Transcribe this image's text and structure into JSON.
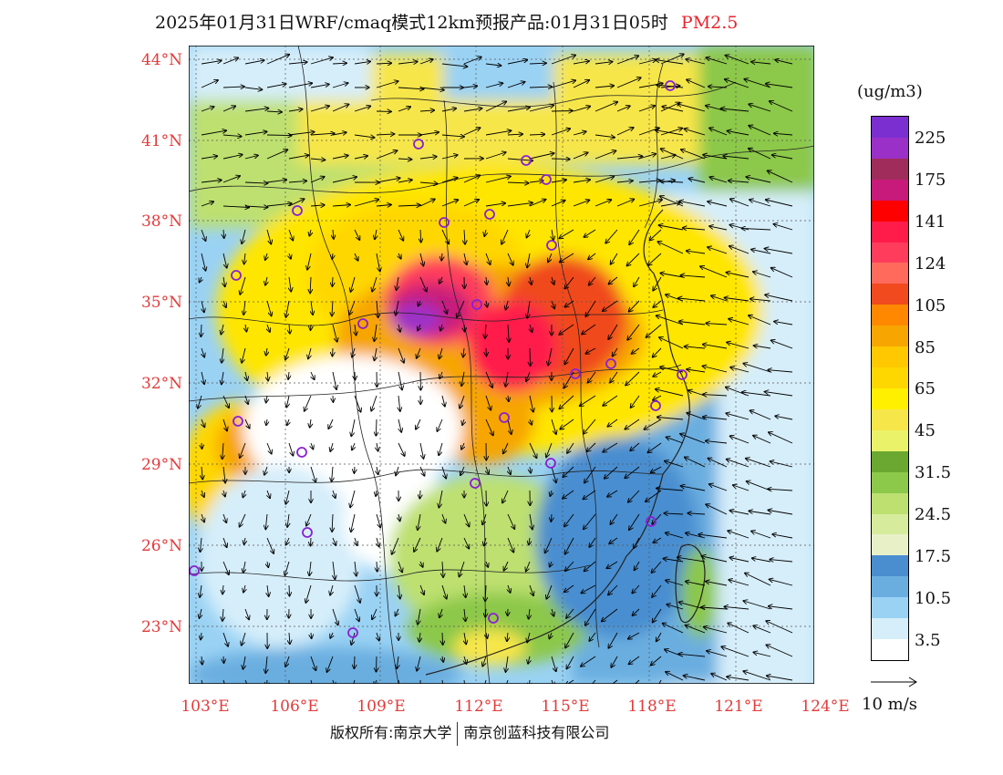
{
  "title": {
    "main": "2025年01月31日WRF/cmaq模式12km预报产品:01月31日05时",
    "species": "PM2.5"
  },
  "axes": {
    "lat_labels": [
      "44°N",
      "41°N",
      "38°N",
      "35°N",
      "32°N",
      "29°N",
      "26°N",
      "23°N"
    ],
    "lon_labels": [
      "103°E",
      "106°E",
      "109°E",
      "112°E",
      "115°E",
      "118°E",
      "121°E",
      "124°E"
    ]
  },
  "legend": {
    "units": "(ug/m3)",
    "labels": [
      "225",
      "175",
      "141",
      "124",
      "105",
      "85",
      "65",
      "45",
      "31.5",
      "24.5",
      "17.5",
      "10.5",
      "3.5"
    ],
    "colors": [
      "#7b2fd1",
      "#9b30c8",
      "#a02c5c",
      "#c81a7a",
      "#ff0000",
      "#ff1c4b",
      "#ff3c5c",
      "#ff6a5c",
      "#f04a1e",
      "#ff8800",
      "#f7a500",
      "#ffc800",
      "#ffd700",
      "#fff000",
      "#f7e64a",
      "#eaf26a",
      "#6aa832",
      "#8cc84a",
      "#bde070",
      "#d6ec9c",
      "#e8f0c8",
      "#4a8ed0",
      "#6aaee0",
      "#9ad2f4",
      "#d6eefa",
      "#ffffff"
    ]
  },
  "vector_reference": {
    "label": "10 m/s"
  },
  "copyright": {
    "left": "版权所有:南京大学",
    "right": "南京创蓝科技有限公司"
  }
}
